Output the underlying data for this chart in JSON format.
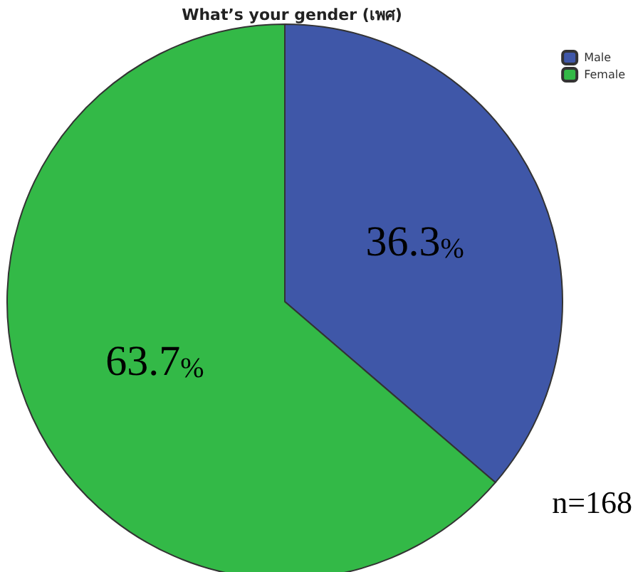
{
  "chart_data": {
    "type": "pie",
    "title": "What’s your gender (เพศ)",
    "categories": [
      "Male",
      "Female"
    ],
    "values": [
      36.3,
      63.7
    ],
    "colors": [
      "#3f57a8",
      "#33b947"
    ],
    "value_labels": [
      "36.3%",
      "63.7%"
    ],
    "legend": "top right",
    "annotations": [
      "n=168"
    ]
  }
}
